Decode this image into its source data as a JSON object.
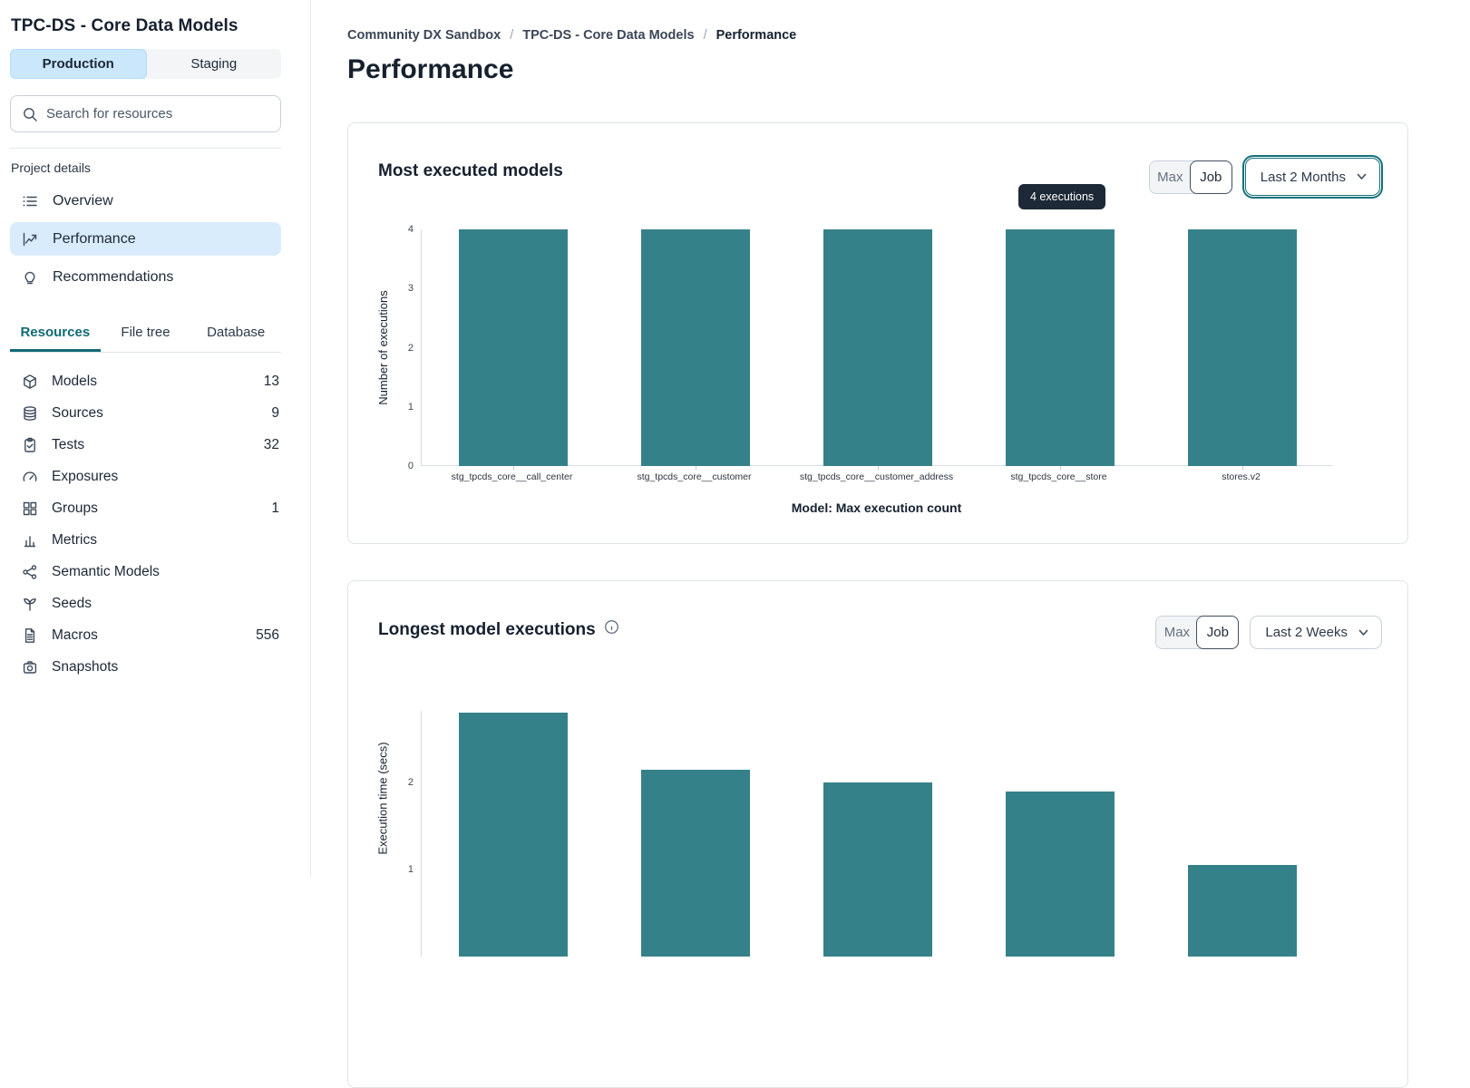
{
  "sidebar": {
    "title": "TPC-DS - Core Data Models",
    "env_toggle": {
      "production": "Production",
      "staging": "Staging",
      "active": "Production"
    },
    "search": {
      "placeholder": "Search for resources",
      "value": ""
    },
    "project_details": {
      "label": "Project details",
      "items": [
        {
          "label": "Overview",
          "icon": "list-icon",
          "active": false
        },
        {
          "label": "Performance",
          "icon": "line-chart-icon",
          "active": true
        },
        {
          "label": "Recommendations",
          "icon": "lightbulb-icon",
          "active": false
        }
      ]
    },
    "tabs": [
      {
        "label": "Resources",
        "active": true
      },
      {
        "label": "File tree",
        "active": false
      },
      {
        "label": "Database",
        "active": false
      }
    ],
    "resources": [
      {
        "label": "Models",
        "count": "13",
        "icon": "cube-icon"
      },
      {
        "label": "Sources",
        "count": "9",
        "icon": "database-icon"
      },
      {
        "label": "Tests",
        "count": "32",
        "icon": "clipboard-check-icon"
      },
      {
        "label": "Exposures",
        "count": "",
        "icon": "gauge-icon"
      },
      {
        "label": "Groups",
        "count": "1",
        "icon": "grid-icon"
      },
      {
        "label": "Metrics",
        "count": "",
        "icon": "bar-chart-icon"
      },
      {
        "label": "Semantic Models",
        "count": "",
        "icon": "share-graph-icon"
      },
      {
        "label": "Seeds",
        "count": "",
        "icon": "seedling-icon"
      },
      {
        "label": "Macros",
        "count": "556",
        "icon": "file-icon"
      },
      {
        "label": "Snapshots",
        "count": "",
        "icon": "camera-icon"
      }
    ]
  },
  "main": {
    "breadcrumb": [
      {
        "label": "Community DX Sandbox",
        "current": false
      },
      {
        "label": "TPC-DS - Core Data Models",
        "current": false
      },
      {
        "label": "Performance",
        "current": true
      }
    ],
    "page_title": "Performance"
  },
  "chart_data": [
    {
      "type": "bar",
      "title": "Most executed models",
      "categories": [
        "stg_tpcds_core__call_center",
        "stg_tpcds_core__customer",
        "stg_tpcds_core__customer_address",
        "stg_tpcds_core__store",
        "stores.v2"
      ],
      "values": [
        4,
        4,
        4,
        4,
        4
      ],
      "ylabel": "Number of executions",
      "xlabel": "Model: Max execution count",
      "yticks": [
        0,
        1,
        2,
        3,
        4
      ],
      "ylim": [
        0,
        4
      ],
      "bar_color": "#35818a",
      "grid": false,
      "tooltip": "4 executions",
      "controls": {
        "max": "Max",
        "job": "Job",
        "selected": "Job",
        "range": "Last 2 Months"
      }
    },
    {
      "type": "bar",
      "title": "Longest model executions",
      "values": [
        2.8,
        2.15,
        2.0,
        1.9,
        1.05
      ],
      "ylabel": "Execution time (secs)",
      "yticks": [
        1,
        2
      ],
      "bar_color": "#35818a",
      "grid": false,
      "controls": {
        "max": "Max",
        "job": "Job",
        "selected": "Job",
        "range": "Last 2 Weeks"
      }
    }
  ]
}
